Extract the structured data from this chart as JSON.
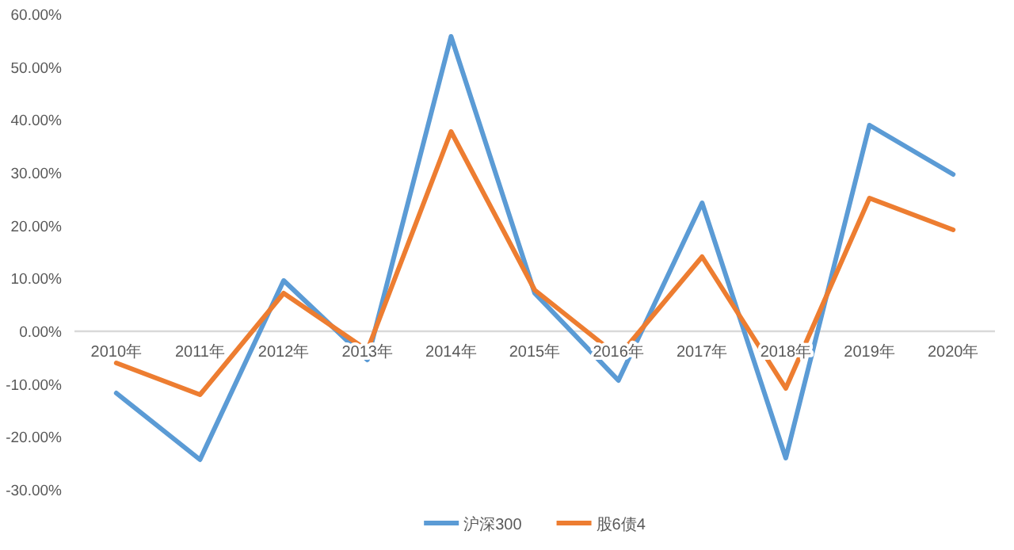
{
  "chart_data": {
    "type": "line",
    "categories": [
      "2010年",
      "2011年",
      "2012年",
      "2013年",
      "2014年",
      "2015年",
      "2016年",
      "2017年",
      "2018年",
      "2019年",
      "2020年"
    ],
    "series": [
      {
        "name": "沪深300",
        "color": "#5b9bd5",
        "values": [
          -11.7,
          -24.3,
          9.6,
          -5.4,
          55.8,
          7.2,
          -9.3,
          24.3,
          -24.0,
          39.0,
          29.7
        ]
      },
      {
        "name": "股6债4",
        "color": "#ed7d31",
        "values": [
          -6.0,
          -12.0,
          7.2,
          -3.6,
          37.8,
          7.8,
          -4.8,
          14.1,
          -10.8,
          25.2,
          19.2
        ]
      }
    ],
    "ylim": [
      -30,
      60
    ],
    "yticks": [
      {
        "value": -30,
        "label": "-30.00%"
      },
      {
        "value": -20,
        "label": "-20.00%"
      },
      {
        "value": -10,
        "label": "-10.00%"
      },
      {
        "value": 0,
        "label": "0.00%"
      },
      {
        "value": 10,
        "label": "10.00%"
      },
      {
        "value": 20,
        "label": "20.00%"
      },
      {
        "value": 30,
        "label": "30.00%"
      },
      {
        "value": 40,
        "label": "40.00%"
      },
      {
        "value": 50,
        "label": "50.00%"
      },
      {
        "value": 60,
        "label": "60.00%"
      }
    ],
    "grid": false,
    "legend": "bottom",
    "marker": "none",
    "line_style": "solid"
  }
}
